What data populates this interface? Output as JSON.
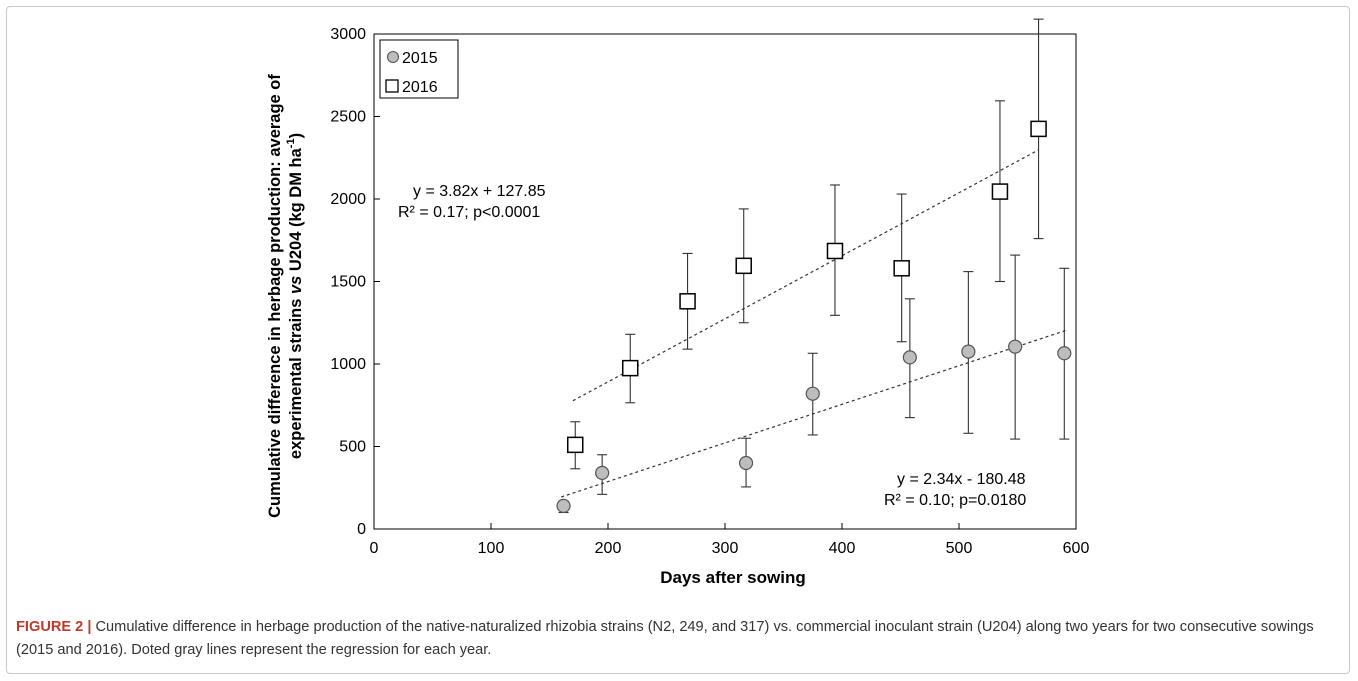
{
  "chart_data": {
    "type": "scatter",
    "xlabel": "Days after sowing",
    "ylabel_line1": "Cumulative difference in herbage production: average of",
    "ylabel_line2_parts": [
      "experimental strains ",
      "vs",
      " U204 (kg DM ha",
      "-1",
      ")"
    ],
    "xlim": [
      0,
      600
    ],
    "ylim": [
      0,
      3000
    ],
    "x_ticks": [
      0,
      100,
      200,
      300,
      400,
      500,
      600
    ],
    "y_ticks": [
      0,
      500,
      1000,
      1500,
      2000,
      2500,
      3000
    ],
    "legend_position": "top-left",
    "series": [
      {
        "name": "2015",
        "marker": "circle",
        "color": "#bdbdbd",
        "points": [
          {
            "x": 162,
            "y": 140,
            "err_low": 100,
            "err_high": 170
          },
          {
            "x": 195,
            "y": 340,
            "err_low": 210,
            "err_high": 450
          },
          {
            "x": 318,
            "y": 400,
            "err_low": 255,
            "err_high": 550
          },
          {
            "x": 375,
            "y": 820,
            "err_low": 570,
            "err_high": 1065
          },
          {
            "x": 458,
            "y": 1040,
            "err_low": 675,
            "err_high": 1395
          },
          {
            "x": 508,
            "y": 1075,
            "err_low": 580,
            "err_high": 1560
          },
          {
            "x": 548,
            "y": 1105,
            "err_low": 545,
            "err_high": 1660
          },
          {
            "x": 590,
            "y": 1065,
            "err_low": 545,
            "err_high": 1580
          }
        ],
        "trend": {
          "x1": 160,
          "x2": 592,
          "equation": "y = 2.34x - 180.48",
          "stats": "R² = 0.10; p=0.0180"
        }
      },
      {
        "name": "2016",
        "marker": "square",
        "color": "#ffffff",
        "points": [
          {
            "x": 172,
            "y": 510,
            "err_low": 365,
            "err_high": 650
          },
          {
            "x": 219,
            "y": 975,
            "err_low": 765,
            "err_high": 1180
          },
          {
            "x": 268,
            "y": 1380,
            "err_low": 1090,
            "err_high": 1670
          },
          {
            "x": 316,
            "y": 1595,
            "err_low": 1250,
            "err_high": 1940
          },
          {
            "x": 394,
            "y": 1685,
            "err_low": 1295,
            "err_high": 2085
          },
          {
            "x": 451,
            "y": 1580,
            "err_low": 1135,
            "err_high": 2030
          },
          {
            "x": 535,
            "y": 2045,
            "err_low": 1500,
            "err_high": 2595
          },
          {
            "x": 568,
            "y": 2425,
            "err_low": 1760,
            "err_high": 3090
          }
        ],
        "trend": {
          "x1": 170,
          "x2": 568,
          "equation": "y = 3.82x + 127.85",
          "stats": "R² = 0.17; p<0.0001"
        }
      }
    ]
  },
  "caption": {
    "label": "FIGURE 2 |",
    "text": " Cumulative difference in herbage production of the native-naturalized rhizobia strains (N2, 249, and 317) vs. commercial inoculant strain (U204) along two years for two consecutive sowings (2015 and 2016). Doted gray lines represent the regression for each year."
  }
}
